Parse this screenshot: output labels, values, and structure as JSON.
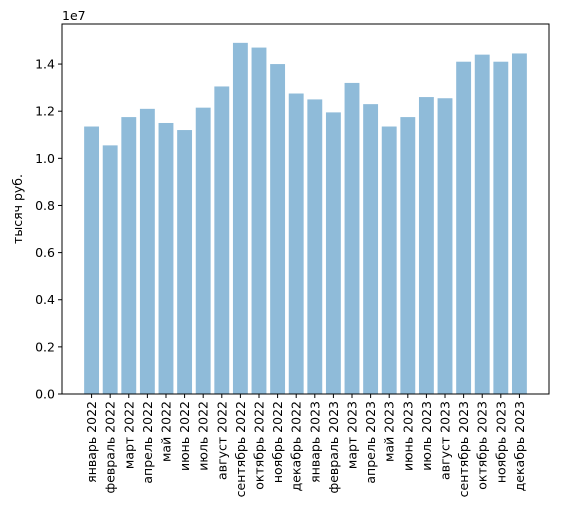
{
  "chart_data": {
    "type": "bar",
    "title": "",
    "xlabel": "",
    "ylabel": "тысяч руб.",
    "offset_label": "1e7",
    "ylim": [
      0,
      15700000
    ],
    "yticks": [
      0,
      2000000,
      4000000,
      6000000,
      8000000,
      10000000,
      12000000,
      14000000
    ],
    "ytick_labels": [
      "0.0",
      "0.2",
      "0.4",
      "0.6",
      "0.8",
      "1.0",
      "1.2",
      "1.4"
    ],
    "bar_color": "#8fbbd9",
    "grid": false,
    "categories": [
      "январь 2022",
      "февраль 2022",
      "март 2022",
      "апрель 2022",
      "май 2022",
      "июнь 2022",
      "июль 2022",
      "август 2022",
      "сентябрь 2022",
      "октябрь 2022",
      "ноябрь 2022",
      "декабрь 2022",
      "январь 2023",
      "февраль 2023",
      "март 2023",
      "апрель 2023",
      "май 2023",
      "июнь 2023",
      "июль 2023",
      "август 2023",
      "сентябрь 2023",
      "октябрь 2023",
      "ноябрь 2023",
      "декабрь 2023"
    ],
    "values": [
      11350000,
      10550000,
      11750000,
      12100000,
      11500000,
      11200000,
      12150000,
      13050000,
      14900000,
      14700000,
      14000000,
      12750000,
      12500000,
      11950000,
      13200000,
      12300000,
      11350000,
      11750000,
      12600000,
      12550000,
      14100000,
      14400000,
      14100000,
      14450000
    ]
  }
}
